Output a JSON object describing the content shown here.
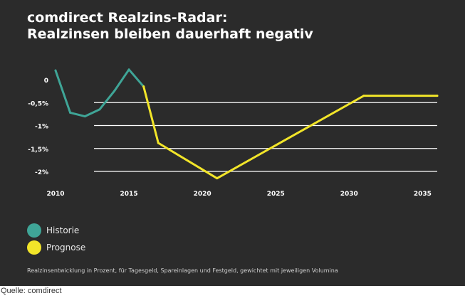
{
  "title_line1": "comdirect Realzins-Radar:",
  "title_line2": "Realzinsen bleiben dauerhaft negativ",
  "legend": [
    {
      "label": "Historie",
      "color": "#3fa597"
    },
    {
      "label": "Prognose",
      "color": "#f2e529"
    }
  ],
  "footnote": "Realzinsentwicklung in Prozent, für Tagesgeld, Spareinlagen und Festgeld, gewichtet mit jeweiligen Volumina",
  "source": "Quelle: comdirect",
  "colors": {
    "background": "#2b2b2b",
    "grid": "#ffffff",
    "text": "#ffffff"
  },
  "chart_data": {
    "type": "line",
    "title": "comdirect Realzins-Radar: Realzinsen bleiben dauerhaft negativ",
    "xlabel": "",
    "ylabel": "",
    "xlim": [
      2010,
      2036
    ],
    "ylim": [
      -2.0,
      0
    ],
    "grid": true,
    "legend_position": "bottom-left",
    "x_ticks": [
      {
        "value": 2010,
        "label": "2010"
      },
      {
        "value": 2015,
        "label": "2015"
      },
      {
        "value": 2020,
        "label": "2020"
      },
      {
        "value": 2025,
        "label": "2025"
      },
      {
        "value": 2030,
        "label": "2030"
      },
      {
        "value": 2035,
        "label": "2035"
      }
    ],
    "y_ticks": [
      {
        "value": 0,
        "label": "0"
      },
      {
        "value": -0.5,
        "label": "-0,5%"
      },
      {
        "value": -1.0,
        "label": "-1%"
      },
      {
        "value": -1.5,
        "label": "-1,5%"
      },
      {
        "value": -2.0,
        "label": "-2%"
      }
    ],
    "series": [
      {
        "name": "Historie",
        "color": "#3fa597",
        "x": [
          2010,
          2011,
          2012,
          2013,
          2014,
          2015,
          2016
        ],
        "y": [
          0.2,
          -0.72,
          -0.8,
          -0.65,
          -0.25,
          0.22,
          -0.15
        ]
      },
      {
        "name": "Prognose",
        "color": "#f2e529",
        "x": [
          2016,
          2017,
          2021,
          2031,
          2036
        ],
        "y": [
          -0.15,
          -1.38,
          -2.15,
          -0.35,
          -0.35
        ]
      }
    ]
  }
}
